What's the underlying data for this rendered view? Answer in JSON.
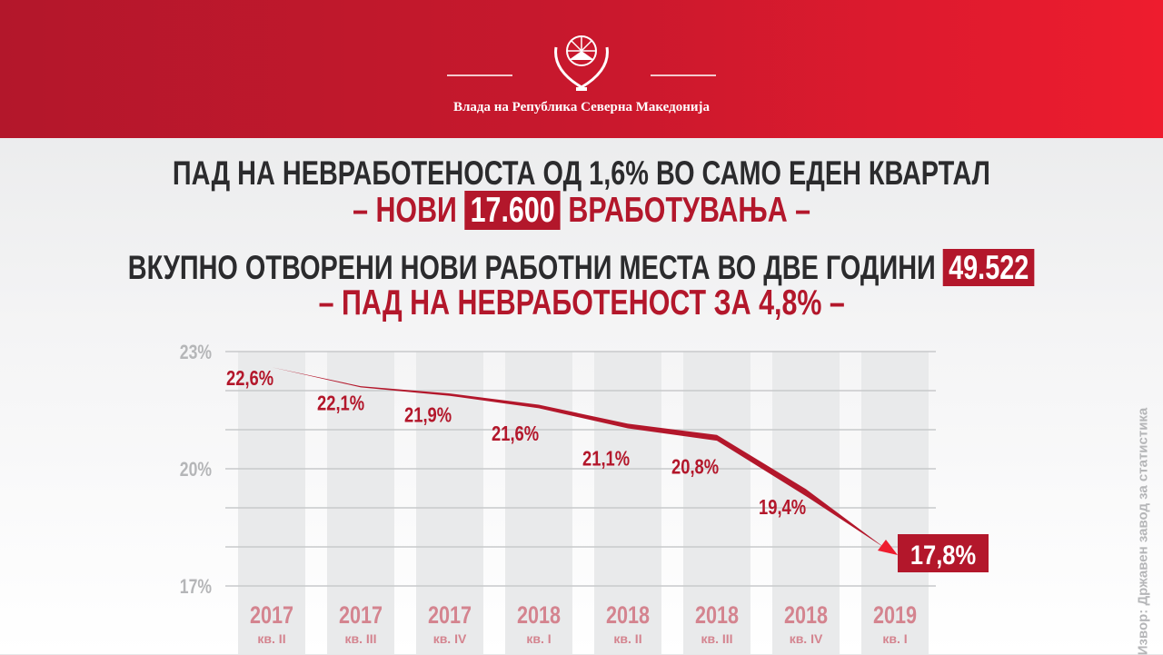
{
  "header": {
    "government": "Влада на Република Северна Македонија"
  },
  "headline": {
    "line1": "ПАД НА НЕВРАБОТЕНОСТА ОД 1,6% ВО САМО ЕДЕН КВАРТАЛ",
    "line2_prefix": "– НОВИ",
    "line2_highlight": "17.600",
    "line2_suffix": "ВРАБОТУВАЊА –",
    "line3_prefix": "ВКУПНО ОТВОРЕНИ НОВИ РАБОТНИ МЕСТА ВО ДВЕ ГОДИНИ",
    "line3_highlight": "49.522",
    "line4": "– ПАД НА НЕВРАБОТЕНОСТ ЗА 4,8% –"
  },
  "source": "Извор:  Државен завод за статистика",
  "colors": {
    "accent": "#b3172b",
    "bright": "#ee1c2e",
    "year_label": "#d4848f",
    "axis_label": "#b5b6b8"
  },
  "chart_data": {
    "type": "line",
    "categories": [
      {
        "year": "2017",
        "quarter": "кв. II"
      },
      {
        "year": "2017",
        "quarter": "кв. III"
      },
      {
        "year": "2017",
        "quarter": "кв. IV"
      },
      {
        "year": "2018",
        "quarter": "кв. I"
      },
      {
        "year": "2018",
        "quarter": "кв. II"
      },
      {
        "year": "2018",
        "quarter": "кв. III"
      },
      {
        "year": "2018",
        "quarter": "кв. IV"
      },
      {
        "year": "2019",
        "quarter": "кв. I"
      }
    ],
    "values": [
      22.6,
      22.1,
      21.9,
      21.6,
      21.1,
      20.8,
      19.4,
      17.8
    ],
    "labels": [
      "22,6%",
      "22,1%",
      "21,9%",
      "21,6%",
      "21,1%",
      "20,8%",
      "19,4%",
      "17,8%"
    ],
    "yticks": [
      {
        "v": 23,
        "label": "23%"
      },
      {
        "v": 20,
        "label": "20%"
      },
      {
        "v": 17,
        "label": "17%"
      }
    ],
    "ylim": [
      17,
      23
    ],
    "grid": true
  }
}
